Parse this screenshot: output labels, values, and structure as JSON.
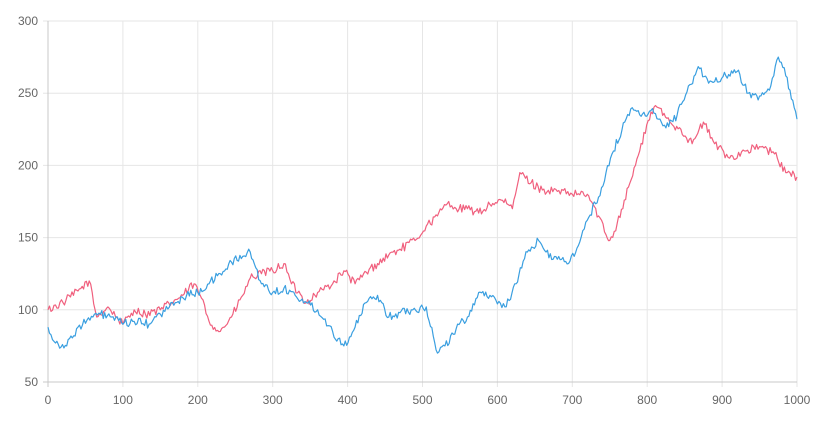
{
  "chart_data": {
    "type": "line",
    "title": "",
    "xlabel": "",
    "ylabel": "",
    "xlim": [
      0,
      1000
    ],
    "ylim": [
      50,
      300
    ],
    "xticks": [
      0,
      100,
      200,
      300,
      400,
      500,
      600,
      700,
      800,
      900,
      1000
    ],
    "yticks": [
      50,
      100,
      150,
      200,
      250,
      300
    ],
    "xtick_labels": [
      "0",
      "100",
      "200",
      "300",
      "400",
      "500",
      "600",
      "700",
      "800",
      "900",
      "1000"
    ],
    "ytick_labels": [
      "50",
      "100",
      "150",
      "200",
      "250",
      "300"
    ],
    "grid": true,
    "legend": "none",
    "series": [
      {
        "color": "#f0607e",
        "x": [
          0,
          20,
          40,
          55,
          65,
          80,
          100,
          115,
          130,
          150,
          165,
          180,
          195,
          205,
          215,
          230,
          245,
          260,
          270,
          285,
          300,
          315,
          325,
          345,
          360,
          380,
          395,
          410,
          425,
          440,
          455,
          470,
          490,
          505,
          520,
          535,
          545,
          560,
          575,
          590,
          605,
          620,
          630,
          645,
          660,
          680,
          700,
          720,
          735,
          745,
          750,
          760,
          775,
          790,
          805,
          815,
          830,
          845,
          860,
          875,
          890,
          910,
          930,
          950,
          970,
          985,
          1000
        ],
        "y": [
          100,
          105,
          113,
          120,
          95,
          102,
          90,
          100,
          97,
          100,
          105,
          110,
          118,
          108,
          92,
          85,
          95,
          110,
          122,
          125,
          127,
          132,
          118,
          105,
          112,
          118,
          127,
          118,
          126,
          132,
          138,
          142,
          148,
          158,
          165,
          175,
          170,
          170,
          167,
          173,
          176,
          170,
          195,
          188,
          183,
          182,
          180,
          180,
          165,
          152,
          148,
          160,
          185,
          210,
          237,
          240,
          230,
          225,
          215,
          230,
          215,
          205,
          210,
          213,
          208,
          195,
          192
        ]
      },
      {
        "color": "#3a9fe0",
        "x": [
          0,
          10,
          25,
          40,
          60,
          70,
          85,
          100,
          115,
          135,
          150,
          170,
          185,
          200,
          215,
          230,
          245,
          260,
          270,
          285,
          300,
          315,
          330,
          345,
          360,
          380,
          395,
          410,
          425,
          440,
          455,
          470,
          485,
          505,
          520,
          530,
          545,
          560,
          575,
          590,
          610,
          625,
          640,
          655,
          665,
          680,
          695,
          710,
          720,
          735,
          745,
          755,
          770,
          780,
          790,
          805,
          815,
          825,
          840,
          855,
          870,
          880,
          890,
          905,
          920,
          935,
          950,
          965,
          975,
          985,
          1000
        ],
        "y": [
          88,
          77,
          75,
          88,
          95,
          97,
          95,
          90,
          92,
          90,
          97,
          105,
          110,
          112,
          118,
          125,
          133,
          137,
          140,
          118,
          112,
          115,
          110,
          105,
          100,
          85,
          75,
          88,
          105,
          110,
          95,
          98,
          100,
          102,
          70,
          75,
          87,
          95,
          112,
          110,
          102,
          118,
          140,
          148,
          140,
          135,
          132,
          147,
          162,
          178,
          195,
          210,
          230,
          240,
          235,
          238,
          232,
          226,
          235,
          255,
          267,
          260,
          258,
          262,
          265,
          250,
          248,
          255,
          275,
          262,
          232
        ]
      }
    ]
  }
}
